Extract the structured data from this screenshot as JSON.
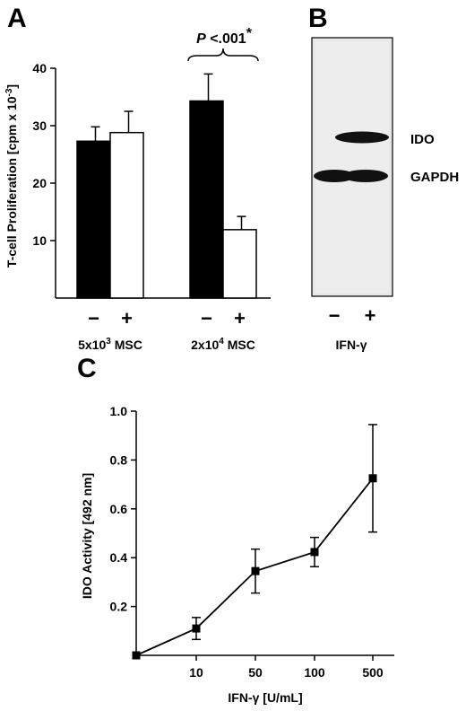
{
  "panels": {
    "a": "A",
    "b": "B",
    "c": "C"
  },
  "chart_data": [
    {
      "id": "A",
      "type": "bar",
      "ylabel": "T-cell Proliferation  [cpm x 10",
      "ylabel_sup": "-3",
      "ylabel_close": "]",
      "ylim": [
        0,
        40
      ],
      "yticks": [
        "10",
        "20",
        "30",
        "40"
      ],
      "ytick_values": [
        10,
        20,
        30,
        40
      ],
      "groups": [
        {
          "label": "5x10",
          "sup": "3",
          "suffix": "  MSC",
          "bars": [
            {
              "sign": "−",
              "value": 27.3,
              "error": 2.5,
              "fill": "#000000"
            },
            {
              "sign": "+",
              "value": 28.8,
              "error": 3.7,
              "fill": "#ffffff"
            }
          ]
        },
        {
          "label": "2x10",
          "sup": "4",
          "suffix": "  MSC",
          "bars": [
            {
              "sign": "−",
              "value": 34.3,
              "error": 4.7,
              "fill": "#000000"
            },
            {
              "sign": "+",
              "value": 11.9,
              "error": 2.3,
              "fill": "#ffffff"
            }
          ]
        }
      ],
      "annotation": {
        "p": "P",
        "rest": " <.001",
        "star": "*"
      }
    },
    {
      "id": "B",
      "type": "blot",
      "bands": [
        "IDO",
        "GAPDH"
      ],
      "lanes": [
        "−",
        "+"
      ],
      "xlabel": "IFN-γ"
    },
    {
      "id": "C",
      "type": "line",
      "ylabel": "IDO Activity [492 nm]",
      "xlabel": "IFN-γ [U/mL]",
      "ylim": [
        0,
        1.0
      ],
      "yticks": [
        "0.2",
        "0.4",
        "0.6",
        "0.8",
        "1.0"
      ],
      "ytick_values": [
        0.2,
        0.4,
        0.6,
        0.8,
        1.0
      ],
      "x": [
        "",
        "10",
        "50",
        "100",
        "500"
      ],
      "values": [
        0.0,
        0.11,
        0.345,
        0.423,
        0.725
      ],
      "errors": [
        0.0,
        0.045,
        0.09,
        0.06,
        0.22
      ]
    }
  ]
}
